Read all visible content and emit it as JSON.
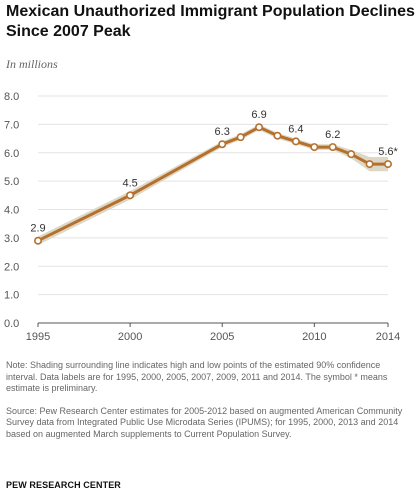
{
  "header": {
    "title": "Mexican Unauthorized Immigrant Population Declines Since 2007 Peak",
    "subtitle": "In millions"
  },
  "chart_data": {
    "type": "line",
    "title": "Mexican Unauthorized Immigrant Population Declines Since 2007 Peak",
    "subtitle": "In millions",
    "xlabel": "",
    "ylabel": "",
    "xlim": [
      1995,
      2014
    ],
    "ylim": [
      0,
      8
    ],
    "y_ticks": [
      "8.0",
      "7.0",
      "6.0",
      "5.0",
      "4.0",
      "3.0",
      "2.0",
      "1.0",
      "0.0"
    ],
    "x_ticks": [
      "1995",
      "2000",
      "2005",
      "2010",
      "2014"
    ],
    "x_tick_values": [
      1995,
      2000,
      2005,
      2010,
      2014
    ],
    "grid": "horizontal",
    "series": [
      {
        "x": [
          1995,
          2000,
          2005,
          2006,
          2007,
          2008,
          2009,
          2010,
          2011,
          2012,
          2013,
          2014
        ],
        "y": [
          2.9,
          4.5,
          6.3,
          6.55,
          6.9,
          6.6,
          6.4,
          6.2,
          6.2,
          5.95,
          5.6,
          5.6
        ],
        "ci_low": [
          2.75,
          4.35,
          6.2,
          6.45,
          6.8,
          6.5,
          6.3,
          6.1,
          6.1,
          5.8,
          5.35,
          5.35
        ],
        "ci_high": [
          3.05,
          4.65,
          6.4,
          6.65,
          7.0,
          6.7,
          6.5,
          6.3,
          6.3,
          6.1,
          5.85,
          5.85
        ],
        "color": "#b6702e",
        "band_color": "#ddd8c6"
      }
    ],
    "data_labels": [
      {
        "x": 1995,
        "text": "2.9"
      },
      {
        "x": 2000,
        "text": "4.5"
      },
      {
        "x": 2005,
        "text": "6.3"
      },
      {
        "x": 2007,
        "text": "6.9"
      },
      {
        "x": 2009,
        "text": "6.4"
      },
      {
        "x": 2011,
        "text": "6.2"
      },
      {
        "x": 2014,
        "text": "5.6*"
      }
    ]
  },
  "notes": {
    "note": "Note: Shading surrounding line indicates high and low points of the estimated 90% confidence interval. Data labels are for 1995, 2000, 2005, 2007, 2009, 2011 and 2014. The symbol * means estimate is preliminary.",
    "source": "Source: Pew Research Center estimates for 2005-2012 based on augmented American Community Survey data from Integrated Public Use Microdata Series (IPUMS); for 1995, 2000, 2013 and 2014 based on augmented March supplements to Current Population Survey."
  },
  "footer": "PEW RESEARCH CENTER"
}
